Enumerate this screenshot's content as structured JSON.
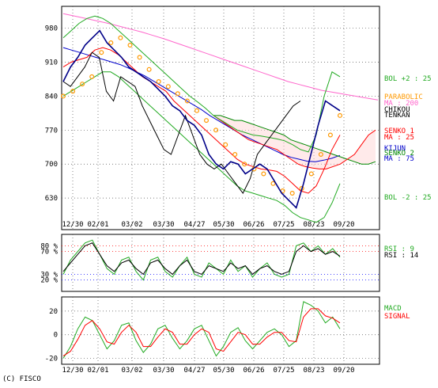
{
  "copyright": "(C) FISCO",
  "chart_data": [
    {
      "type": "line",
      "panel": "price",
      "x_tick_labels": [
        "12/30",
        "02/01",
        "03/02",
        "03/30",
        "04/27",
        "05/30",
        "06/26",
        "07/25",
        "08/23",
        "09/20"
      ],
      "y_ticks": [
        630,
        700,
        770,
        840,
        910,
        980
      ],
      "ylim": [
        565,
        1025
      ],
      "grid": true,
      "legend": [
        {
          "label": "BOL +2 : 25",
          "color": "#22aa22"
        },
        {
          "label": "PARABOLIC",
          "color": "#ff9900"
        },
        {
          "label": "MA : 200",
          "color": "#ff66cc"
        },
        {
          "label": "CHIKOU",
          "color": "#000000"
        },
        {
          "label": "TENKAN",
          "color": "#000000"
        },
        {
          "label": "SENKO 1",
          "color": "#ff0000"
        },
        {
          "label": "MA : 25",
          "color": "#ff0000"
        },
        {
          "label": "KIJUN",
          "color": "#0000cc"
        },
        {
          "label": "SENKO 2",
          "color": "#008800"
        },
        {
          "label": "MA : 75",
          "color": "#0000cc"
        },
        {
          "label": "BOL -2 : 25",
          "color": "#22aa22"
        }
      ],
      "series": [
        {
          "name": "PRICE",
          "values": [
            870,
            900,
            920,
            945,
            960,
            975,
            950,
            935,
            920,
            900,
            890,
            880,
            870,
            855,
            840,
            820,
            810,
            790,
            780,
            760,
            720,
            700,
            690,
            705,
            700,
            680,
            690,
            700,
            690,
            665,
            640,
            625,
            610,
            660,
            720,
            780,
            830,
            820,
            810
          ]
        },
        {
          "name": "MA : 200",
          "values": [
            1010,
            1005,
            1000,
            995,
            990,
            984,
            978,
            972,
            965,
            958,
            950,
            942,
            934,
            926,
            918,
            910,
            902,
            894,
            886,
            878,
            870,
            864,
            858,
            852,
            848,
            844,
            840,
            836,
            832
          ]
        },
        {
          "name": "MA : 25",
          "values": [
            900,
            910,
            915,
            920,
            935,
            940,
            935,
            925,
            910,
            895,
            880,
            870,
            860,
            850,
            830,
            815,
            800,
            785,
            770,
            755,
            740,
            725,
            710,
            700,
            695,
            690,
            688,
            685,
            675,
            660,
            645,
            640,
            655,
            690,
            730,
            760
          ]
        },
        {
          "name": "MA : 75",
          "values": [
            940,
            935,
            930,
            925,
            920,
            915,
            910,
            905,
            898,
            890,
            882,
            872,
            862,
            852,
            842,
            832,
            822,
            812,
            800,
            790,
            780,
            770,
            760,
            752,
            744,
            736,
            728,
            720,
            714,
            710,
            706,
            705,
            708,
            712,
            718
          ]
        },
        {
          "name": "BOL +2 : 25",
          "values": [
            960,
            975,
            990,
            1000,
            1005,
            1000,
            990,
            975,
            960,
            945,
            930,
            915,
            900,
            885,
            870,
            855,
            840,
            828,
            815,
            800,
            790,
            780,
            770,
            765,
            760,
            758,
            755,
            752,
            748,
            740,
            730,
            725,
            760,
            840,
            890,
            880
          ]
        },
        {
          "name": "BOL -2 : 25",
          "values": [
            840,
            850,
            860,
            870,
            880,
            890,
            890,
            880,
            865,
            850,
            835,
            820,
            805,
            790,
            775,
            760,
            745,
            730,
            715,
            700,
            685,
            670,
            655,
            645,
            640,
            635,
            630,
            625,
            615,
            600,
            590,
            585,
            580,
            590,
            620,
            660
          ]
        },
        {
          "name": "CHIKOU",
          "values": [
            870,
            860,
            880,
            900,
            930,
            920,
            850,
            830,
            880,
            870,
            860,
            820,
            790,
            760,
            730,
            720,
            760,
            800,
            760,
            720,
            700,
            690,
            700,
            680,
            660,
            640,
            670,
            720,
            740,
            760,
            780,
            800,
            820,
            830
          ]
        },
        {
          "name": "PARABOLIC",
          "values": [
            840,
            850,
            865,
            880,
            930,
            950,
            960,
            945,
            920,
            895,
            870,
            860,
            845,
            830,
            810,
            790,
            770,
            740,
            720,
            700,
            690,
            680,
            660,
            645,
            640,
            650,
            680,
            720,
            760,
            800
          ]
        },
        {
          "name": "SENKO 1",
          "values": [
            800,
            790,
            780,
            770,
            760,
            750,
            745,
            740,
            735,
            730,
            720,
            710,
            700,
            695,
            692,
            690,
            690,
            695,
            700,
            710,
            720,
            740,
            760,
            770
          ]
        },
        {
          "name": "SENKO 2",
          "values": [
            800,
            800,
            795,
            790,
            790,
            785,
            780,
            775,
            770,
            765,
            760,
            750,
            745,
            740,
            735,
            730,
            725,
            720,
            715,
            710,
            705,
            700,
            700,
            705
          ]
        }
      ]
    },
    {
      "type": "line",
      "panel": "rsi",
      "y_tick_labels": [
        {
          "label": "80 %",
          "value": 80,
          "color": "#ff0000"
        },
        {
          "label": "70 %",
          "value": 70,
          "color": "#ff0000"
        },
        {
          "label": "30 %",
          "value": 30,
          "color": "#0000ff"
        },
        {
          "label": "20 %",
          "value": 20,
          "color": "#0000ff"
        }
      ],
      "ylim": [
        0,
        100
      ],
      "legend": [
        {
          "label": "RSI : 9",
          "color": "#22aa22"
        },
        {
          "label": "RSI : 14",
          "color": "#000000"
        }
      ],
      "series": [
        {
          "name": "RSI : 9",
          "values": [
            30,
            55,
            70,
            85,
            90,
            65,
            40,
            30,
            55,
            60,
            35,
            20,
            55,
            60,
            35,
            25,
            45,
            60,
            30,
            25,
            50,
            40,
            30,
            55,
            35,
            45,
            25,
            40,
            50,
            30,
            25,
            30,
            80,
            85,
            70,
            80,
            65,
            75,
            60
          ]
        },
        {
          "name": "RSI : 14",
          "values": [
            35,
            50,
            65,
            80,
            85,
            65,
            45,
            35,
            50,
            55,
            40,
            30,
            50,
            55,
            40,
            30,
            45,
            55,
            35,
            30,
            45,
            40,
            35,
            50,
            40,
            45,
            30,
            40,
            45,
            35,
            30,
            35,
            70,
            80,
            70,
            75,
            65,
            70,
            62
          ]
        }
      ]
    },
    {
      "type": "line",
      "panel": "macd",
      "y_ticks": [
        -20,
        0,
        20
      ],
      "ylim": [
        -25,
        32
      ],
      "legend": [
        {
          "label": "MACD",
          "color": "#22aa22"
        },
        {
          "label": "SIGNAL",
          "color": "#ff0000"
        }
      ],
      "series": [
        {
          "name": "MACD",
          "values": [
            -20,
            -10,
            5,
            15,
            12,
            0,
            -12,
            -5,
            8,
            10,
            -5,
            -15,
            -8,
            5,
            8,
            -3,
            -12,
            -5,
            5,
            8,
            -5,
            -18,
            -10,
            2,
            6,
            -5,
            -12,
            -5,
            2,
            5,
            0,
            -10,
            -5,
            28,
            25,
            20,
            10,
            15,
            5
          ]
        },
        {
          "name": "SIGNAL",
          "values": [
            -18,
            -14,
            -4,
            8,
            12,
            5,
            -6,
            -8,
            2,
            8,
            2,
            -10,
            -10,
            -2,
            5,
            2,
            -8,
            -8,
            0,
            5,
            2,
            -12,
            -14,
            -6,
            2,
            0,
            -8,
            -8,
            -2,
            2,
            2,
            -5,
            -6,
            15,
            22,
            22,
            16,
            14,
            10
          ]
        }
      ]
    }
  ]
}
